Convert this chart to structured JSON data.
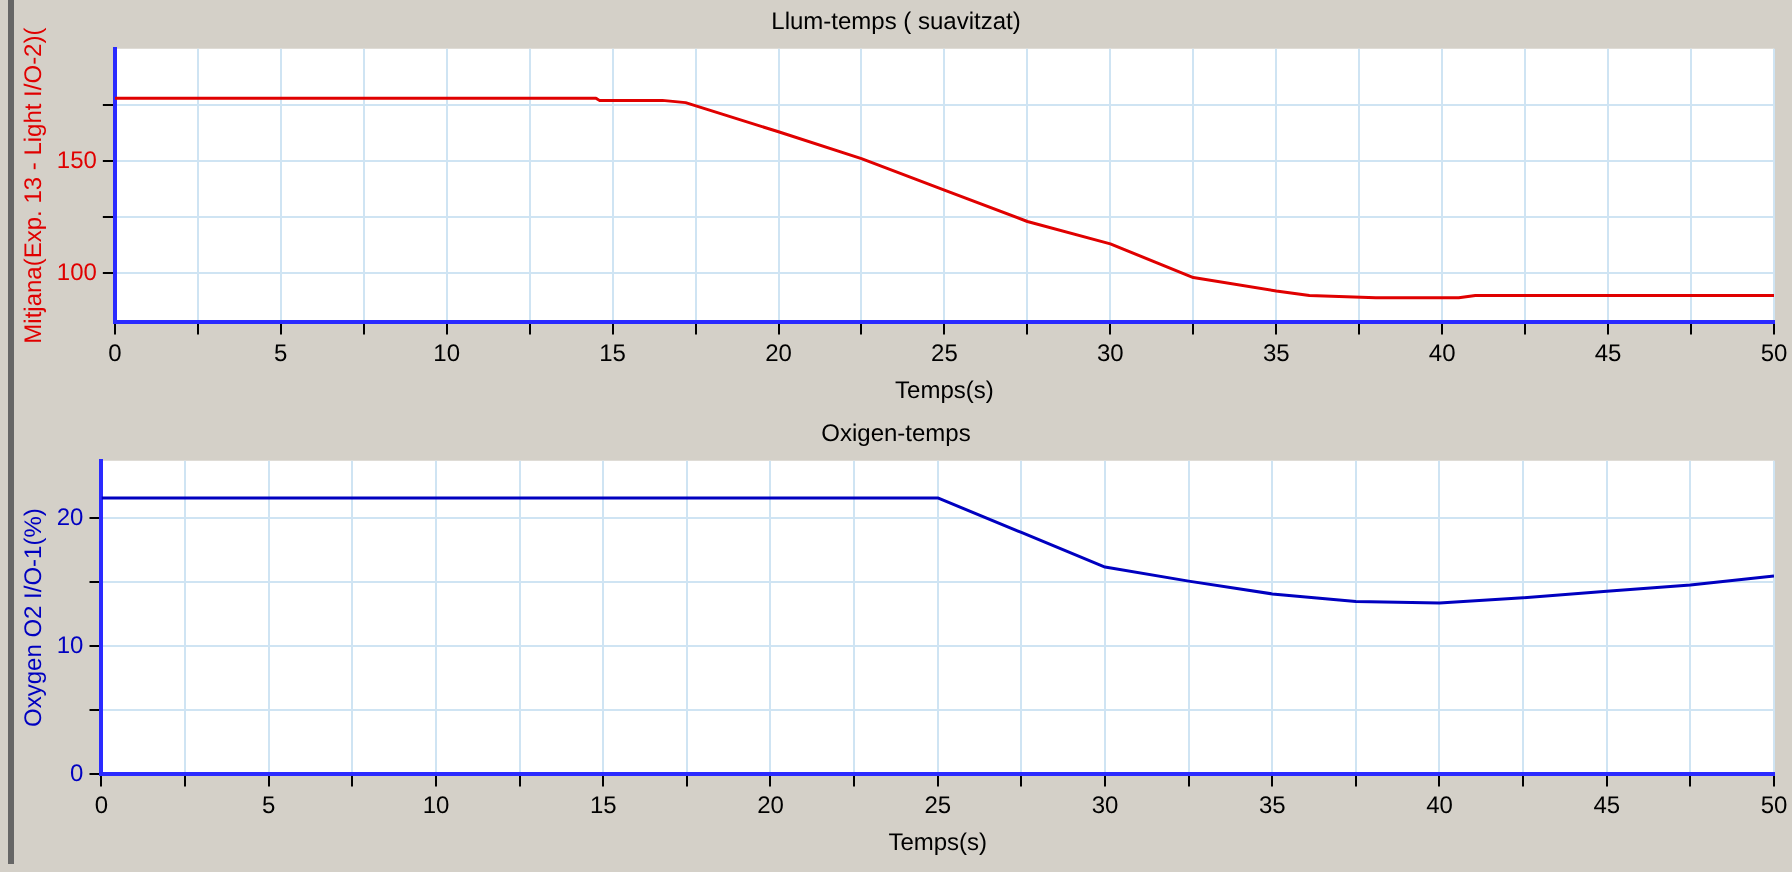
{
  "chart_data": [
    {
      "type": "line",
      "title": "Llum-temps ( suavitzat)",
      "xlabel": "Temps(s)",
      "ylabel": "Mitjana(Exp. 13 - Light I/O-2)(",
      "xlim": [
        0,
        50
      ],
      "xticks": [
        0,
        {
          "value": 2.5,
          "label": null
        },
        5,
        {
          "value": 7.5,
          "label": null
        },
        10,
        {
          "value": 12.5,
          "label": null
        },
        15,
        {
          "value": 17.5,
          "label": null
        },
        20,
        {
          "value": 22.5,
          "label": null
        },
        25,
        {
          "value": 27.5,
          "label": null
        },
        30,
        {
          "value": 32.5,
          "label": null
        },
        35,
        {
          "value": 37.5,
          "label": null
        },
        40,
        {
          "value": 42.5,
          "label": null
        },
        45,
        {
          "value": 47.5,
          "label": null
        },
        50
      ],
      "ylim": [
        78,
        200
      ],
      "yticks": [
        100,
        {
          "value": 125,
          "label": null
        },
        150,
        {
          "value": 175,
          "label": null
        }
      ],
      "grid": true,
      "legend": false,
      "marker": "none",
      "series": [
        {
          "color": "#e00000",
          "x": [
            0,
            14.5,
            14.6,
            16.5,
            17.2,
            20,
            22.5,
            25,
            27.5,
            30,
            32.5,
            35,
            36,
            38,
            40.5,
            41,
            50
          ],
          "values": [
            178,
            178,
            177,
            177,
            176,
            163,
            151,
            137,
            123,
            113,
            98,
            92,
            90,
            89,
            89,
            90,
            90
          ]
        }
      ]
    },
    {
      "type": "line",
      "title": "Oxigen-temps",
      "xlabel": "Temps(s)",
      "ylabel": "Oxygen O2 I/O-1(%)",
      "xlim": [
        0,
        50
      ],
      "xticks": [
        0,
        {
          "value": 2.5,
          "label": null
        },
        5,
        {
          "value": 7.5,
          "label": null
        },
        10,
        {
          "value": 12.5,
          "label": null
        },
        15,
        {
          "value": 17.5,
          "label": null
        },
        20,
        {
          "value": 22.5,
          "label": null
        },
        25,
        {
          "value": 27.5,
          "label": null
        },
        30,
        {
          "value": 32.5,
          "label": null
        },
        35,
        {
          "value": 37.5,
          "label": null
        },
        40,
        {
          "value": 42.5,
          "label": null
        },
        45,
        {
          "value": 47.5,
          "label": null
        },
        50
      ],
      "ylim": [
        0,
        24.5
      ],
      "yticks": [
        0,
        {
          "value": 5,
          "label": null
        },
        10,
        {
          "value": 15,
          "label": null
        },
        20
      ],
      "grid": true,
      "legend": false,
      "marker": "none",
      "series": [
        {
          "color": "#0000c0",
          "x": [
            0,
            25,
            27.5,
            30,
            32.5,
            35,
            37.5,
            40,
            42.5,
            45,
            47.5,
            50
          ],
          "values": [
            21.6,
            21.6,
            18.9,
            16.2,
            15.1,
            14.1,
            13.5,
            13.4,
            13.8,
            14.3,
            14.8,
            15.5
          ]
        }
      ]
    }
  ]
}
